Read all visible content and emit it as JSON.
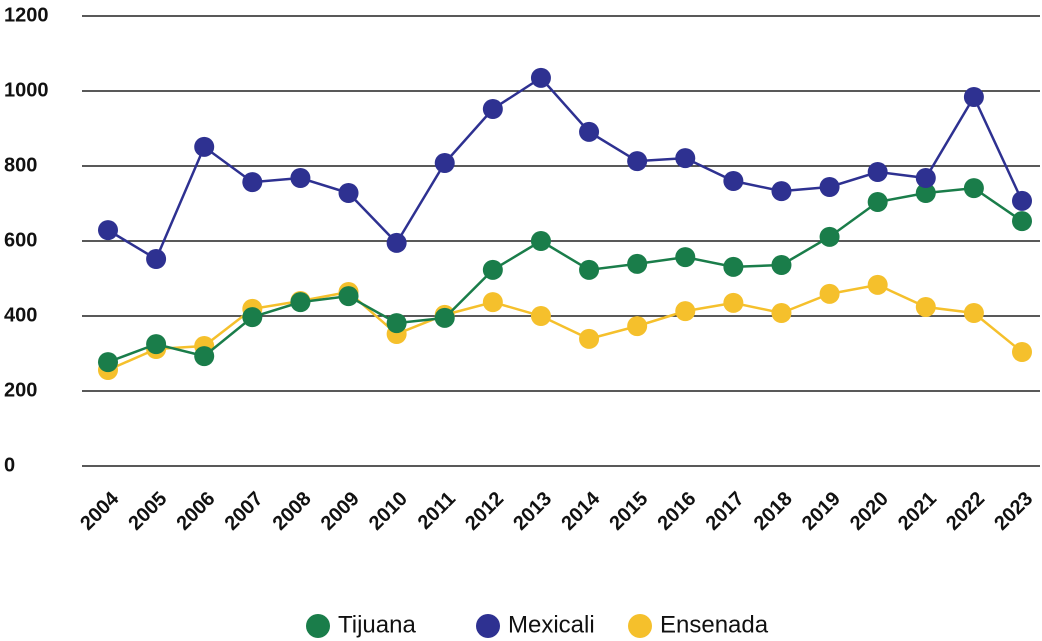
{
  "chart_data": {
    "type": "line",
    "categories": [
      "2004",
      "2005",
      "2006",
      "2007",
      "2008",
      "2009",
      "2010",
      "2011",
      "2012",
      "2013",
      "2014",
      "2015",
      "2016",
      "2017",
      "2018",
      "2019",
      "2020",
      "2021",
      "2022",
      "2023"
    ],
    "series": [
      {
        "name": "Tijuana",
        "color": "#1a7d4a",
        "values": [
          277,
          325,
          293,
          397,
          437,
          453,
          381,
          395,
          523,
          600,
          523,
          539,
          557,
          531,
          536,
          611,
          704,
          728,
          741,
          653
        ]
      },
      {
        "name": "Mexicali",
        "color": "#2e3191",
        "values": [
          629,
          552,
          851,
          757,
          768,
          728,
          595,
          808,
          952,
          1035,
          891,
          813,
          821,
          760,
          733,
          744,
          784,
          768,
          984,
          707
        ]
      },
      {
        "name": "Ensenada",
        "color": "#f5c02c",
        "values": [
          256,
          312,
          320,
          419,
          440,
          464,
          352,
          403,
          437,
          400,
          339,
          373,
          413,
          435,
          408,
          459,
          483,
          424,
          408,
          304
        ]
      }
    ],
    "ylim": [
      0,
      1200
    ],
    "yticks": [
      0,
      200,
      400,
      600,
      800,
      1000,
      1200
    ],
    "grid": true,
    "legend": "bottom"
  }
}
